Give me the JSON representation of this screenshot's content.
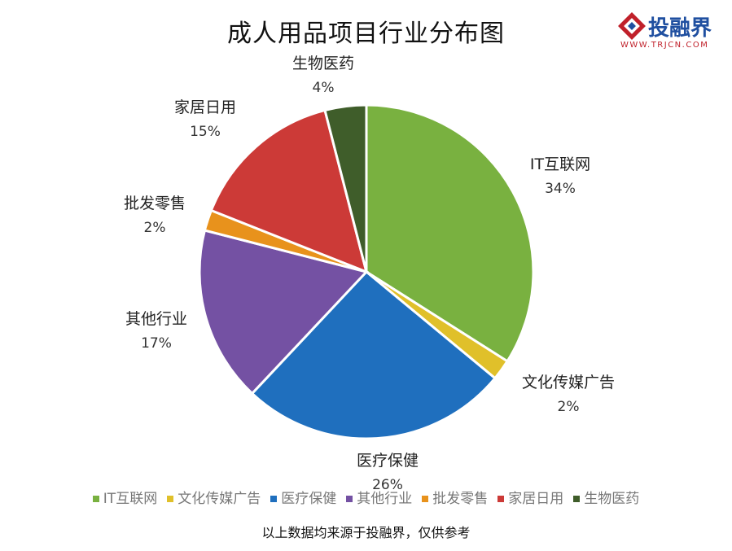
{
  "chart_data": {
    "type": "pie",
    "title": "成人用品项目行业分布图",
    "slices": [
      {
        "label": "IT互联网",
        "value": 34,
        "pct_label": "34%",
        "color": "#79b140"
      },
      {
        "label": "文化传媒广告",
        "value": 2,
        "pct_label": "2%",
        "color": "#e0c02a"
      },
      {
        "label": "医疗保健",
        "value": 26,
        "pct_label": "26%",
        "color": "#1f6fbe"
      },
      {
        "label": "其他行业",
        "value": 17,
        "pct_label": "17%",
        "color": "#7451a3"
      },
      {
        "label": "批发零售",
        "value": 2,
        "pct_label": "2%",
        "color": "#e8921c"
      },
      {
        "label": "家居日用",
        "value": 15,
        "pct_label": "15%",
        "color": "#cc3a37"
      },
      {
        "label": "生物医药",
        "value": 4,
        "pct_label": "4%",
        "color": "#3f5d2a"
      }
    ],
    "legend_position": "bottom"
  },
  "logo": {
    "name": "投融界",
    "url": "WWW.TRJCN.COM",
    "icon": "diamond-logo-icon"
  },
  "footnote": "以上数据均来源于投融界，仅供参考"
}
